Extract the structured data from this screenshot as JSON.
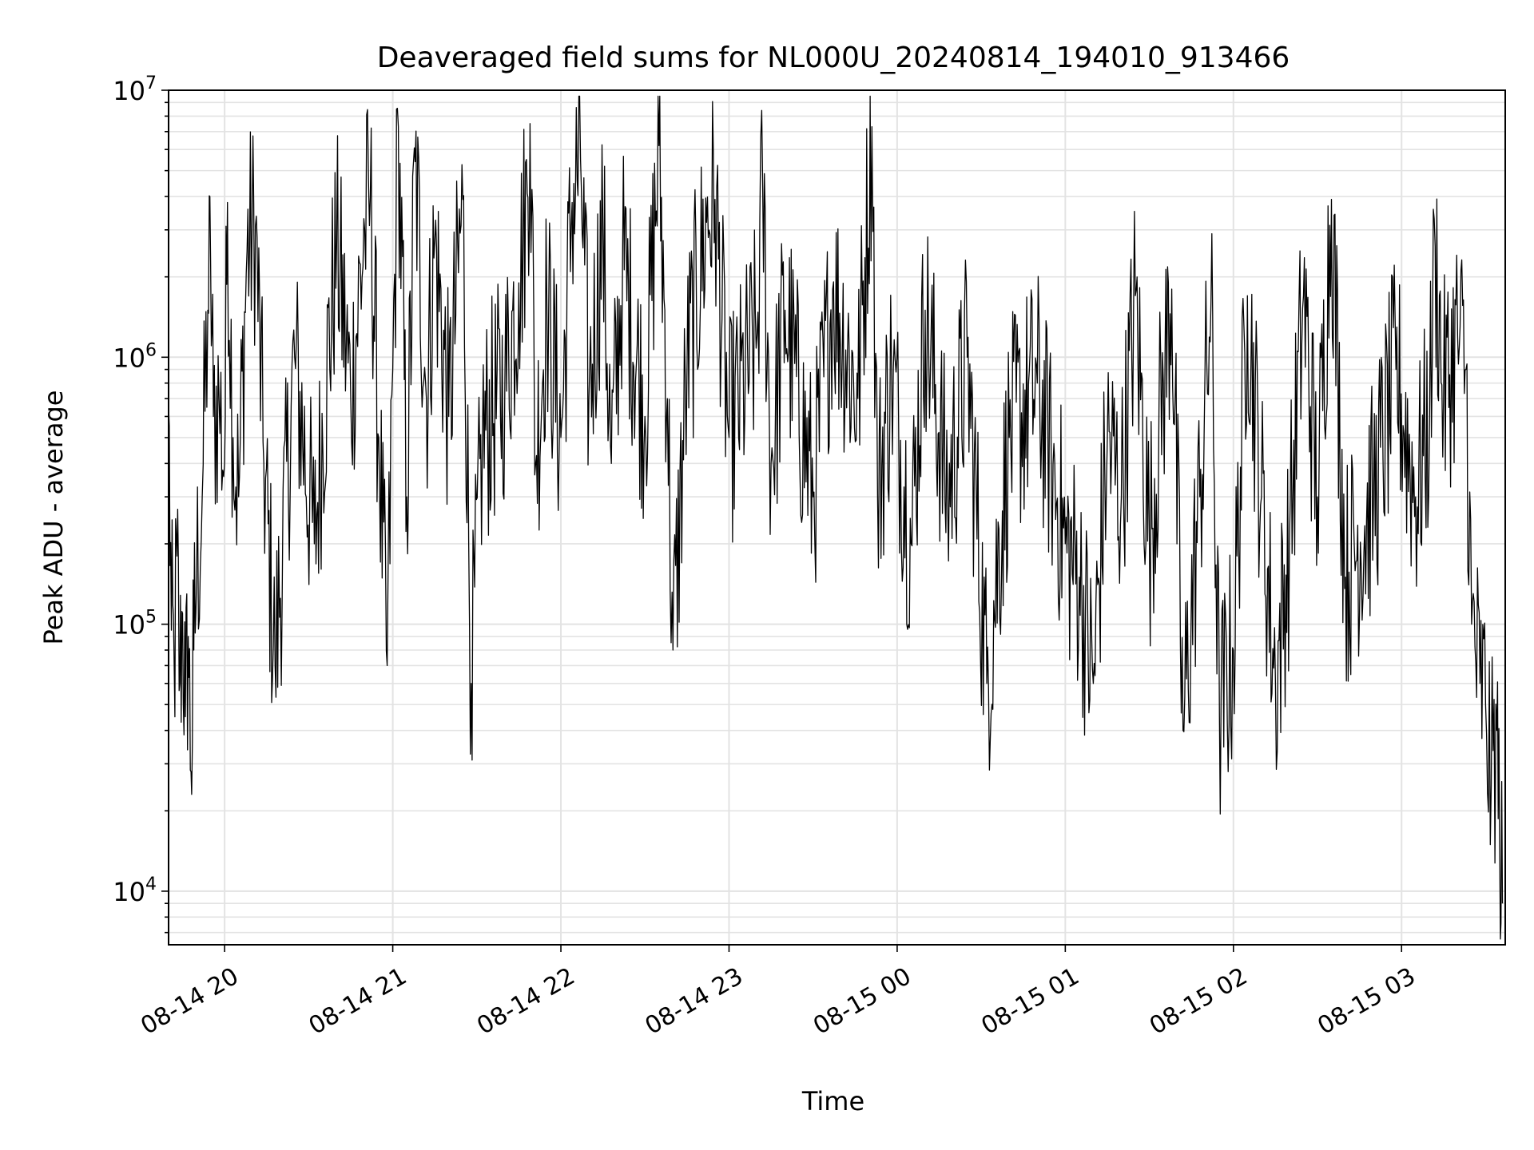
{
  "chart_data": {
    "type": "line",
    "title": "Deaveraged field sums for NL000U_20240814_194010_913466",
    "xlabel": "Time",
    "ylabel": "Peak ADU - average",
    "yscale": "log",
    "xlim": [
      "2024-08-14 19:40",
      "2024-08-15 03:37"
    ],
    "ylim": [
      6300,
      10000000
    ],
    "grid": true,
    "line_color": "#000000",
    "x_ticks": [
      "08-14 20",
      "08-14 21",
      "08-14 22",
      "08-14 23",
      "08-15 00",
      "08-15 01",
      "08-15 02",
      "08-15 03"
    ],
    "y_ticks": [
      {
        "base": "10",
        "exp": "4"
      },
      {
        "base": "10",
        "exp": "5"
      },
      {
        "base": "10",
        "exp": "6"
      },
      {
        "base": "10",
        "exp": "7"
      }
    ],
    "series": [
      {
        "x_unit": "time (HH:MM)",
        "points": [
          [
            "19:40",
            650000
          ],
          [
            "19:41",
            95000
          ],
          [
            "19:42",
            70000
          ],
          [
            "19:43",
            180000
          ],
          [
            "19:44",
            60000
          ],
          [
            "19:45",
            110000
          ],
          [
            "19:46",
            45000
          ],
          [
            "19:47",
            90000
          ],
          [
            "19:48",
            28000
          ],
          [
            "19:49",
            80000
          ],
          [
            "19:50",
            150000
          ],
          [
            "19:52",
            300000
          ],
          [
            "19:54",
            1500000
          ],
          [
            "19:55",
            2300000
          ],
          [
            "19:56",
            600000
          ],
          [
            "19:58",
            700000
          ],
          [
            "20:00",
            400000
          ],
          [
            "20:01",
            3800000
          ],
          [
            "20:03",
            500000
          ],
          [
            "20:05",
            300000
          ],
          [
            "20:08",
            2500000
          ],
          [
            "20:11",
            3100000
          ],
          [
            "20:14",
            400000
          ],
          [
            "20:18",
            70000
          ],
          [
            "20:25",
            1000000
          ],
          [
            "20:32",
            200000
          ],
          [
            "20:40",
            2700000
          ],
          [
            "20:45",
            700000
          ],
          [
            "20:50",
            3000000
          ],
          [
            "20:52",
            4000000
          ],
          [
            "20:55",
            500000
          ],
          [
            "20:58",
            70000
          ],
          [
            "21:00",
            900000
          ],
          [
            "21:02",
            7300000
          ],
          [
            "21:05",
            300000
          ],
          [
            "21:08",
            5400000
          ],
          [
            "21:12",
            700000
          ],
          [
            "21:15",
            2700000
          ],
          [
            "21:20",
            600000
          ],
          [
            "21:25",
            3900000
          ],
          [
            "21:28",
            60000
          ],
          [
            "21:32",
            500000
          ],
          [
            "21:40",
            800000
          ],
          [
            "21:45",
            1900000
          ],
          [
            "21:48",
            4100000
          ],
          [
            "21:49",
            7500000
          ],
          [
            "21:51",
            400000
          ],
          [
            "21:55",
            1600000
          ],
          [
            "22:00",
            500000
          ],
          [
            "22:04",
            3800000
          ],
          [
            "22:07",
            5500000
          ],
          [
            "22:10",
            700000
          ],
          [
            "22:15",
            3000000
          ],
          [
            "22:18",
            400000
          ],
          [
            "22:22",
            2300000
          ],
          [
            "22:30",
            600000
          ],
          [
            "22:35",
            6200000
          ],
          [
            "22:38",
            700000
          ],
          [
            "22:40",
            80000
          ],
          [
            "22:45",
            900000
          ],
          [
            "22:52",
            3200000
          ],
          [
            "22:55",
            3900000
          ],
          [
            "23:00",
            500000
          ],
          [
            "23:10",
            1200000
          ],
          [
            "23:12",
            4400000
          ],
          [
            "23:15",
            400000
          ],
          [
            "23:20",
            1500000
          ],
          [
            "23:30",
            300000
          ],
          [
            "23:37",
            1800000
          ],
          [
            "23:46",
            700000
          ],
          [
            "23:51",
            7300000
          ],
          [
            "23:53",
            300000
          ],
          [
            "23:58",
            900000
          ],
          [
            "00:05",
            200000
          ],
          [
            "00:10",
            1500000
          ],
          [
            "00:18",
            300000
          ],
          [
            "00:25",
            1000000
          ],
          [
            "00:32",
            60000
          ],
          [
            "00:40",
            500000
          ],
          [
            "00:50",
            800000
          ],
          [
            "00:55",
            400000
          ],
          [
            "01:00",
            200000
          ],
          [
            "01:05",
            150000
          ],
          [
            "01:10",
            60000
          ],
          [
            "01:15",
            500000
          ],
          [
            "01:20",
            300000
          ],
          [
            "01:25",
            1700000
          ],
          [
            "01:30",
            200000
          ],
          [
            "01:35",
            800000
          ],
          [
            "01:38",
            1800000
          ],
          [
            "01:42",
            40000
          ],
          [
            "01:48",
            300000
          ],
          [
            "01:52",
            1600000
          ],
          [
            "01:55",
            45000
          ],
          [
            "02:00",
            80000
          ],
          [
            "02:05",
            1700000
          ],
          [
            "02:10",
            300000
          ],
          [
            "02:15",
            60000
          ],
          [
            "02:20",
            200000
          ],
          [
            "02:25",
            1700000
          ],
          [
            "02:30",
            300000
          ],
          [
            "02:35",
            3900000
          ],
          [
            "02:40",
            150000
          ],
          [
            "02:50",
            300000
          ],
          [
            "02:58",
            900000
          ],
          [
            "03:05",
            300000
          ],
          [
            "03:10",
            600000
          ],
          [
            "03:12",
            2600000
          ],
          [
            "03:15",
            700000
          ],
          [
            "03:20",
            1200000
          ],
          [
            "03:23",
            900000
          ],
          [
            "03:25",
            100000
          ],
          [
            "03:28",
            60000
          ],
          [
            "03:30",
            50000
          ],
          [
            "03:32",
            25000
          ],
          [
            "03:34",
            40000
          ],
          [
            "03:35",
            15000
          ],
          [
            "03:36",
            9000
          ]
        ]
      }
    ]
  }
}
